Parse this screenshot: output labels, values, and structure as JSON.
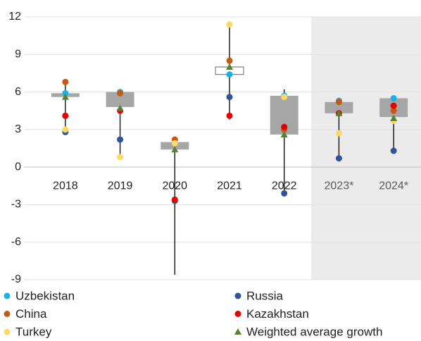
{
  "chart_data": {
    "type": "range",
    "categories": [
      "2018",
      "2019",
      "2020",
      "2021",
      "2022",
      "2023*",
      "2024*"
    ],
    "shaded": [
      false,
      false,
      false,
      false,
      false,
      true,
      true
    ],
    "range_low": [
      2.8,
      0.8,
      -8.6,
      3.8,
      -2.1,
      0.7,
      1.3
    ],
    "range_high": [
      6.8,
      6.0,
      2.2,
      11.4,
      6.2,
      5.3,
      5.5
    ],
    "box_low": [
      5.6,
      4.8,
      1.4,
      7.4,
      2.6,
      4.3,
      4.0
    ],
    "box_high": [
      5.9,
      6.0,
      2.0,
      8.0,
      5.7,
      5.2,
      5.5
    ],
    "box_colors": [
      "#a6a6a6",
      "#a6a6a6",
      "#a6a6a6",
      "#ffffff",
      "#a6a6a6",
      "#a6a6a6",
      "#a6a6a6"
    ],
    "series": [
      {
        "name": "Uzbekistan",
        "color": "#1cb1e6",
        "marker": "circle",
        "values": [
          5.9,
          6.0,
          1.9,
          7.4,
          5.7,
          5.3,
          5.5
        ]
      },
      {
        "name": "Russia",
        "color": "#2f5597",
        "marker": "circle",
        "values": [
          2.8,
          2.2,
          -2.7,
          5.6,
          -2.1,
          0.7,
          1.3
        ]
      },
      {
        "name": "China",
        "color": "#c55a11",
        "marker": "circle",
        "values": [
          6.8,
          5.9,
          2.2,
          8.5,
          3.0,
          5.2,
          4.5
        ]
      },
      {
        "name": "Kazakhstan",
        "color": "#e60000",
        "marker": "circle",
        "values": [
          4.1,
          4.5,
          -2.6,
          4.1,
          3.2,
          4.3,
          4.9
        ]
      },
      {
        "name": "Turkey",
        "color": "#ffd966",
        "marker": "circle",
        "values": [
          3.0,
          0.8,
          1.9,
          11.4,
          5.6,
          2.7,
          3.7
        ]
      },
      {
        "name": "Weighted average growth",
        "color": "#548235",
        "marker": "triangle",
        "values": [
          5.6,
          4.7,
          1.4,
          8.0,
          2.6,
          4.3,
          3.9
        ]
      }
    ],
    "ylim": [
      -9,
      12
    ],
    "yticks": [
      -9,
      -6,
      -3,
      0,
      3,
      6,
      9,
      12
    ],
    "grid": true
  }
}
